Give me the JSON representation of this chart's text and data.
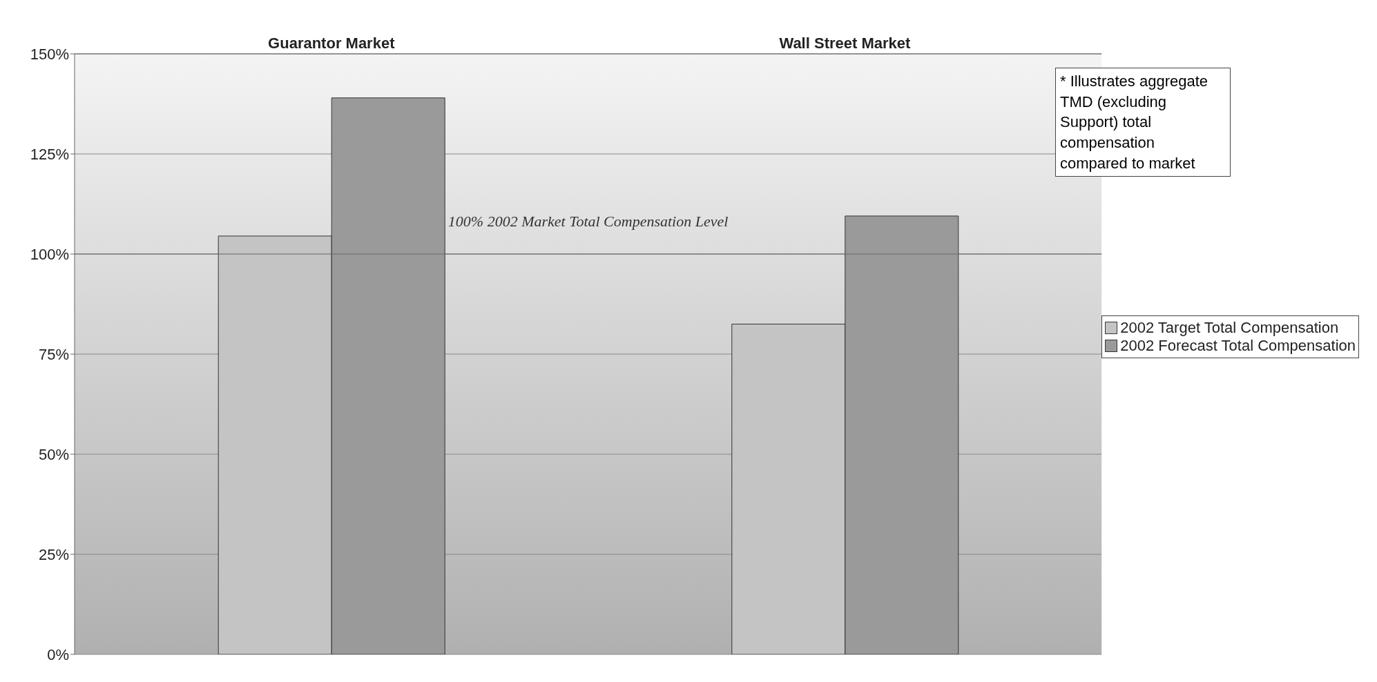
{
  "chart_data": {
    "type": "bar",
    "categories": [
      "Guarantor Market",
      "Wall Street Market"
    ],
    "series": [
      {
        "name": "2002 Target Total Compensation",
        "color": "#c4c4c4",
        "values": [
          104.5,
          82.5
        ]
      },
      {
        "name": "2002 Forecast Total Compensation",
        "color": "#9a9a9a",
        "values": [
          139,
          109.5
        ]
      }
    ],
    "ylim": [
      0,
      150
    ],
    "yticks": [
      {
        "value": 0,
        "label": "0%"
      },
      {
        "value": 25,
        "label": "25%"
      },
      {
        "value": 50,
        "label": "50%"
      },
      {
        "value": 75,
        "label": "75%"
      },
      {
        "value": 100,
        "label": "100%"
      },
      {
        "value": 125,
        "label": "125%"
      },
      {
        "value": 150,
        "label": "150%"
      }
    ],
    "ref_lines": [
      {
        "axis": "y",
        "value": 100,
        "label": "100% 2002 Market Total Compensation Level",
        "color": "#666666"
      }
    ],
    "annotations": [
      "* Illustrates aggregate TMD (excluding Support) total compensation compared to market"
    ],
    "grid": "y",
    "legend": "right"
  }
}
